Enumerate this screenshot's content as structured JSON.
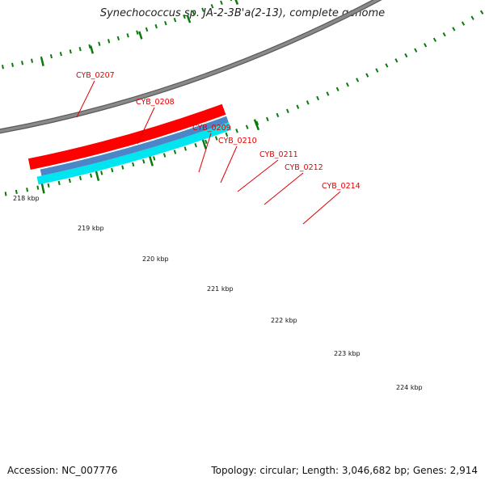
{
  "title": "Synechococcus sp. JA-2-3B'a(2-13), complete genome",
  "accession": "Accession: NC_007776",
  "summary": "Topology: circular; Length: 3,046,682 bp; Genes: 2,914",
  "colors": {
    "backbone": "#8a8a8a",
    "cds": "#ff0000",
    "cds_dark": "#b00000",
    "gene": "#4a3f8c",
    "trna_cyan": "#00e6f0",
    "trna_blue": "#4a86c8",
    "blue_feature": "#1414ff",
    "tick": "#0a7a0a",
    "label": "#e00000"
  },
  "ticks": [
    {
      "label": "218 kbp"
    },
    {
      "label": "219 kbp"
    },
    {
      "label": "220 kbp"
    },
    {
      "label": "221 kbp"
    },
    {
      "label": "222 kbp"
    },
    {
      "label": "223 kbp"
    },
    {
      "label": "224 kbp"
    }
  ],
  "genes": [
    {
      "label": "CYB_0207"
    },
    {
      "label": "CYB_0208"
    },
    {
      "label": "CYB_0209"
    },
    {
      "label": "CYB_0210"
    },
    {
      "label": "CYB_0211"
    },
    {
      "label": "CYB_0212"
    },
    {
      "label": "CYB_0214"
    }
  ]
}
